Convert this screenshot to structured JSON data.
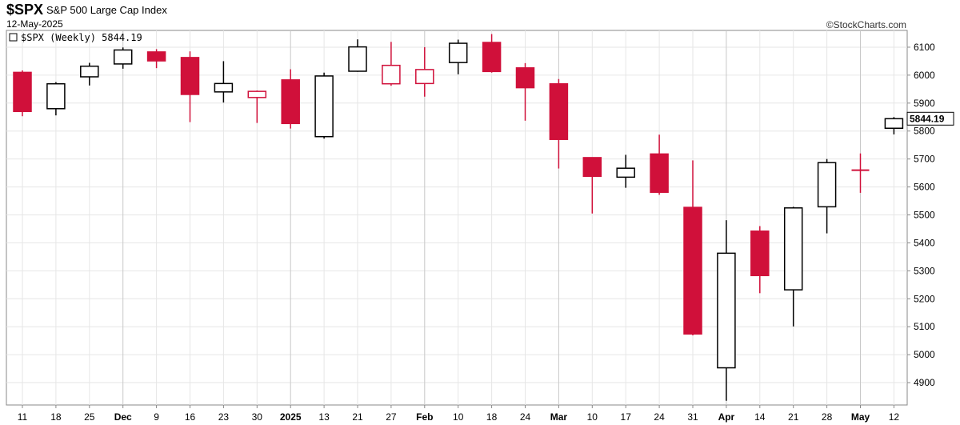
{
  "header": {
    "symbol": "$SPX",
    "name": "S&P 500 Large Cap Index",
    "date": "12-May-2025",
    "brand": "©StockCharts.com"
  },
  "legend": {
    "text": "$SPX (Weekly) 5844.19"
  },
  "colors": {
    "up": "#000000",
    "down": "#d0103a",
    "grid": "#e6e6e6",
    "border": "#888888"
  },
  "chart_data": {
    "type": "candlestick",
    "title": "$SPX S&P 500 Large Cap Index",
    "series_name": "$SPX (Weekly)",
    "last_value": "5844.19",
    "ylim": [
      4820,
      6160
    ],
    "y_ticks": [
      4900,
      5000,
      5100,
      5200,
      5300,
      5400,
      5500,
      5600,
      5700,
      5800,
      5900,
      6000,
      6100
    ],
    "grid": true,
    "x_labels": [
      {
        "label": "11"
      },
      {
        "label": "18"
      },
      {
        "label": "25"
      },
      {
        "label": "Dec",
        "bold": true
      },
      {
        "label": "9"
      },
      {
        "label": "16"
      },
      {
        "label": "23"
      },
      {
        "label": "30"
      },
      {
        "label": "2025",
        "bold": true
      },
      {
        "label": "13"
      },
      {
        "label": "21"
      },
      {
        "label": "27"
      },
      {
        "label": "Feb",
        "bold": true
      },
      {
        "label": "10"
      },
      {
        "label": "18"
      },
      {
        "label": "24"
      },
      {
        "label": "Mar",
        "bold": true
      },
      {
        "label": "10"
      },
      {
        "label": "17"
      },
      {
        "label": "24"
      },
      {
        "label": "31"
      },
      {
        "label": "Apr",
        "bold": true
      },
      {
        "label": "14"
      },
      {
        "label": "21"
      },
      {
        "label": "28"
      },
      {
        "label": "May",
        "bold": true
      },
      {
        "label": "12"
      }
    ],
    "candles": [
      {
        "date": "2024-11-11",
        "open": 6010,
        "high": 6017,
        "low": 5853,
        "close": 5870,
        "fill": "down"
      },
      {
        "date": "2024-11-18",
        "open": 5880,
        "high": 5975,
        "low": 5856,
        "close": 5969,
        "fill": "up"
      },
      {
        "date": "2024-11-25",
        "open": 5994,
        "high": 6044,
        "low": 5963,
        "close": 6032,
        "fill": "up"
      },
      {
        "date": "2024-12-02",
        "open": 6040,
        "high": 6099,
        "low": 6023,
        "close": 6090,
        "fill": "up"
      },
      {
        "date": "2024-12-09",
        "open": 6083,
        "high": 6093,
        "low": 6025,
        "close": 6051,
        "fill": "down"
      },
      {
        "date": "2024-12-16",
        "open": 6063,
        "high": 6085,
        "low": 5832,
        "close": 5931,
        "fill": "down"
      },
      {
        "date": "2024-12-23",
        "open": 5940,
        "high": 6050,
        "low": 5902,
        "close": 5970,
        "fill": "up"
      },
      {
        "date": "2024-12-30",
        "open": 5920,
        "high": 5945,
        "low": 5829,
        "close": 5942,
        "fill": "hollow-down"
      },
      {
        "date": "2025-01-06",
        "open": 5983,
        "high": 6021,
        "low": 5809,
        "close": 5827,
        "fill": "down"
      },
      {
        "date": "2025-01-13",
        "open": 5780,
        "high": 6009,
        "low": 5773,
        "close": 5997,
        "fill": "up"
      },
      {
        "date": "2025-01-21",
        "open": 6014,
        "high": 6128,
        "low": 6012,
        "close": 6101,
        "fill": "up"
      },
      {
        "date": "2025-01-27",
        "open": 6035,
        "high": 6119,
        "low": 5962,
        "close": 5969,
        "fill": "hollow-down"
      },
      {
        "date": "2025-02-03",
        "open": 6020,
        "high": 6100,
        "low": 5923,
        "close": 5970,
        "fill": "hollow-down"
      },
      {
        "date": "2025-02-10",
        "open": 6045,
        "high": 6127,
        "low": 6003,
        "close": 6114,
        "fill": "up"
      },
      {
        "date": "2025-02-18",
        "open": 6117,
        "high": 6147,
        "low": 6009,
        "close": 6013,
        "fill": "down"
      },
      {
        "date": "2025-02-24",
        "open": 6026,
        "high": 6043,
        "low": 5837,
        "close": 5955,
        "fill": "down"
      },
      {
        "date": "2025-03-03",
        "open": 5969,
        "high": 5986,
        "low": 5666,
        "close": 5770,
        "fill": "down"
      },
      {
        "date": "2025-03-10",
        "open": 5705,
        "high": 5705,
        "low": 5505,
        "close": 5638,
        "fill": "down"
      },
      {
        "date": "2025-03-17",
        "open": 5635,
        "high": 5715,
        "low": 5597,
        "close": 5667,
        "fill": "up"
      },
      {
        "date": "2025-03-24",
        "open": 5718,
        "high": 5787,
        "low": 5572,
        "close": 5581,
        "fill": "down"
      },
      {
        "date": "2025-03-31",
        "open": 5527,
        "high": 5695,
        "low": 5069,
        "close": 5074,
        "fill": "down"
      },
      {
        "date": "2025-04-07",
        "open": 4953,
        "high": 5481,
        "low": 4835,
        "close": 5363,
        "fill": "up"
      },
      {
        "date": "2025-04-14",
        "open": 5442,
        "high": 5460,
        "low": 5220,
        "close": 5283,
        "fill": "down"
      },
      {
        "date": "2025-04-21",
        "open": 5232,
        "high": 5529,
        "low": 5101,
        "close": 5525,
        "fill": "up"
      },
      {
        "date": "2025-04-28",
        "open": 5529,
        "high": 5700,
        "low": 5434,
        "close": 5687,
        "fill": "up"
      },
      {
        "date": "2025-05-05",
        "open": 5658,
        "high": 5720,
        "low": 5579,
        "close": 5660,
        "fill": "doji-down"
      },
      {
        "date": "2025-05-12",
        "open": 5810,
        "high": 5850,
        "low": 5788,
        "close": 5844.19,
        "fill": "up"
      }
    ]
  }
}
